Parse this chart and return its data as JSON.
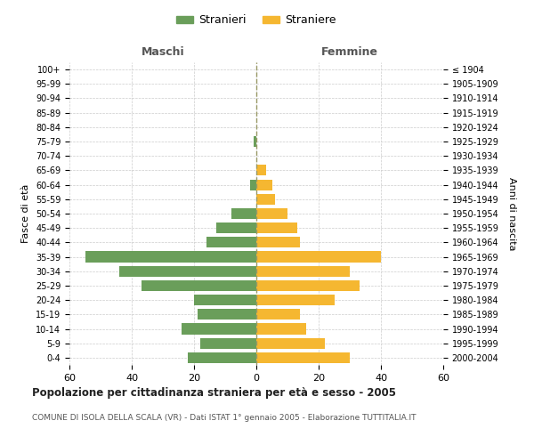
{
  "age_groups": [
    "0-4",
    "5-9",
    "10-14",
    "15-19",
    "20-24",
    "25-29",
    "30-34",
    "35-39",
    "40-44",
    "45-49",
    "50-54",
    "55-59",
    "60-64",
    "65-69",
    "70-74",
    "75-79",
    "80-84",
    "85-89",
    "90-94",
    "95-99",
    "100+"
  ],
  "birth_years": [
    "2000-2004",
    "1995-1999",
    "1990-1994",
    "1985-1989",
    "1980-1984",
    "1975-1979",
    "1970-1974",
    "1965-1969",
    "1960-1964",
    "1955-1959",
    "1950-1954",
    "1945-1949",
    "1940-1944",
    "1935-1939",
    "1930-1934",
    "1925-1929",
    "1920-1924",
    "1915-1919",
    "1910-1914",
    "1905-1909",
    "≤ 1904"
  ],
  "males": [
    22,
    18,
    24,
    19,
    20,
    37,
    44,
    55,
    16,
    13,
    8,
    0,
    2,
    0,
    0,
    1,
    0,
    0,
    0,
    0,
    0
  ],
  "females": [
    30,
    22,
    16,
    14,
    25,
    33,
    30,
    40,
    14,
    13,
    10,
    6,
    5,
    3,
    0,
    0,
    0,
    0,
    0,
    0,
    0
  ],
  "male_color": "#6a9e5a",
  "female_color": "#f5b731",
  "background_color": "#ffffff",
  "grid_color": "#cccccc",
  "center_line_color": "#999966",
  "title": "Popolazione per cittadinanza straniera per età e sesso - 2005",
  "subtitle": "COMUNE DI ISOLA DELLA SCALA (VR) - Dati ISTAT 1° gennaio 2005 - Elaborazione TUTTITALIA.IT",
  "left_label": "Maschi",
  "right_label": "Femmine",
  "y_left_label": "Fasce di età",
  "y_right_label": "Anni di nascita",
  "legend_male": "Stranieri",
  "legend_female": "Straniere",
  "xlim": 60
}
